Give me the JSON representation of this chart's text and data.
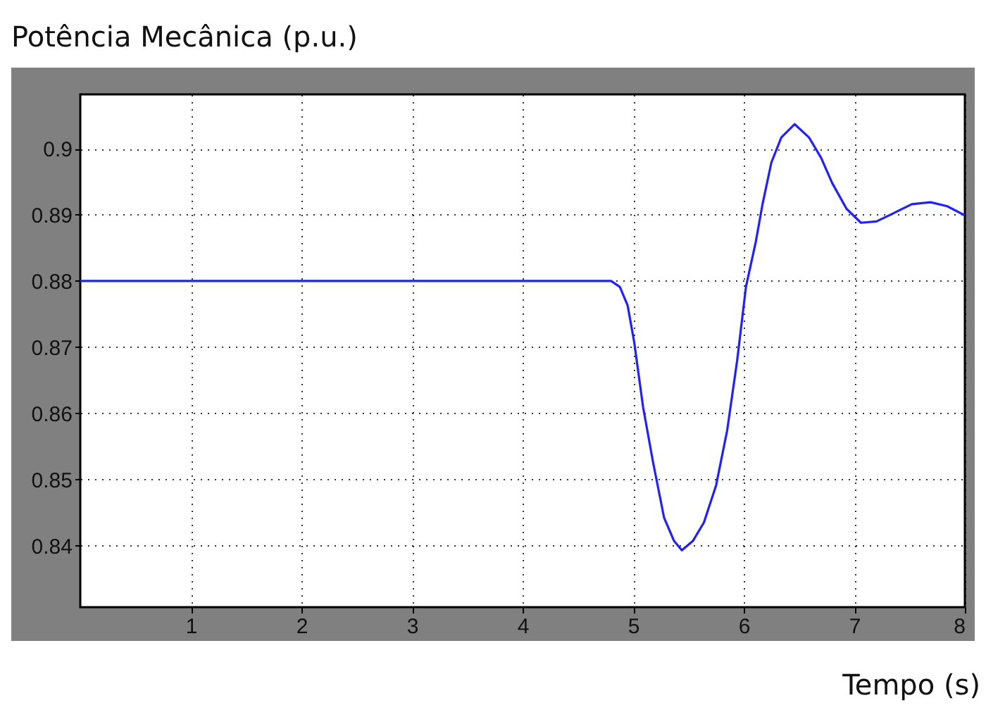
{
  "chart_data": {
    "type": "line",
    "title": "Potência Mecânica (p.u.)",
    "xlabel": "Tempo (s)",
    "xlim": [
      0,
      8
    ],
    "xticks": [
      1,
      2,
      3,
      4,
      5,
      6,
      7,
      8
    ],
    "ylim": [
      0.8307,
      0.9082
    ],
    "yticks": [
      0.84,
      0.85,
      0.86,
      0.87,
      0.88,
      0.89,
      0.9
    ],
    "grid": true,
    "line_style": "solid",
    "x": [
      0,
      4.8,
      4.88,
      4.95,
      5.01,
      5.09,
      5.18,
      5.28,
      5.37,
      5.44,
      5.54,
      5.64,
      5.75,
      5.85,
      5.94,
      6.02,
      6.11,
      6.17,
      6.25,
      6.34,
      6.46,
      6.59,
      6.7,
      6.8,
      6.93,
      7.06,
      7.2,
      7.35,
      7.52,
      7.69,
      7.84,
      8
    ],
    "series": [
      {
        "color": "#2020ff",
        "values": [
          0.88,
          0.88,
          0.8791,
          0.8763,
          0.8707,
          0.8609,
          0.8526,
          0.8442,
          0.8407,
          0.8393,
          0.8407,
          0.8435,
          0.8491,
          0.8574,
          0.8679,
          0.8791,
          0.886,
          0.8916,
          0.8979,
          0.9017,
          0.9037,
          0.9017,
          0.8986,
          0.8948,
          0.8909,
          0.8888,
          0.889,
          0.8902,
          0.8916,
          0.8919,
          0.8913,
          0.8899
        ]
      }
    ]
  }
}
